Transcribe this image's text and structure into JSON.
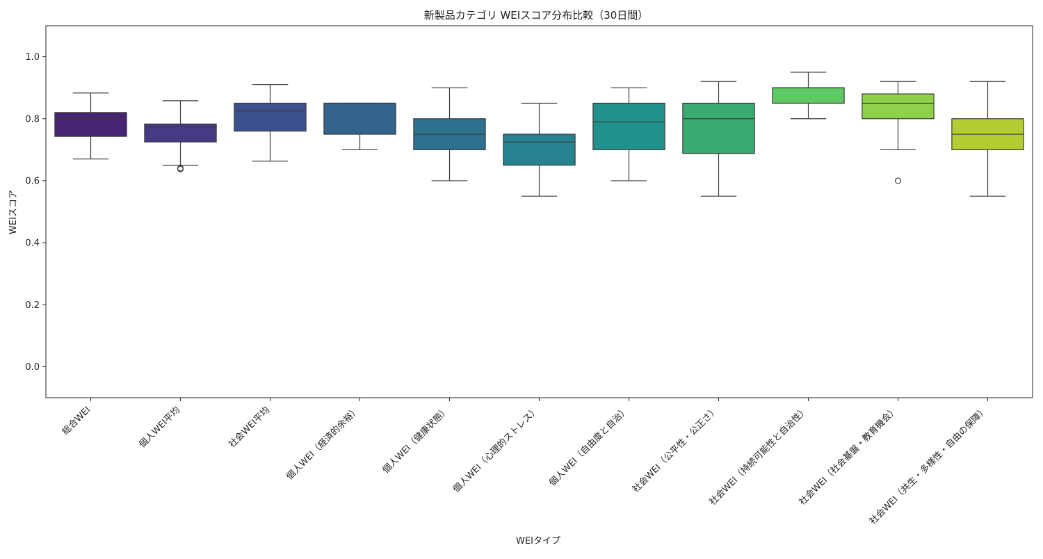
{
  "chart_data": {
    "type": "box",
    "title": "新製品カテゴリ WEIスコア分布比較（30日間）",
    "xlabel": "WEIタイプ",
    "ylabel": "WEIスコア",
    "ylim": [
      -0.1,
      1.1
    ],
    "yticks": [
      "0.0",
      "0.2",
      "0.4",
      "0.6",
      "0.8",
      "1.0"
    ],
    "ytick_values": [
      0.0,
      0.2,
      0.4,
      0.6,
      0.8,
      1.0
    ],
    "grid": false,
    "palette": "viridis",
    "categories": [
      "総合WEI",
      "個人WEI平均",
      "社会WEI平均",
      "個人WEI（経済的余裕）",
      "個人WEI（健康状態）",
      "個人WEI（心理的ストレス）",
      "個人WEI（自由度と自治）",
      "社会WEI（公平性・公正さ）",
      "社会WEI（持続可能性と自治性）",
      "社会WEI（社会基盤・教育機会）",
      "社会WEI（共生・多様性・自由の保障）"
    ],
    "boxes": [
      {
        "whislo": 0.67,
        "q1": 0.743,
        "median": 0.8,
        "q3": 0.82,
        "whishi": 0.883,
        "fliers": [],
        "color": "#482475"
      },
      {
        "whislo": 0.65,
        "q1": 0.725,
        "median": 0.775,
        "q3": 0.783,
        "whishi": 0.858,
        "fliers": [
          0.638,
          0.64
        ],
        "color": "#443b84"
      },
      {
        "whislo": 0.663,
        "q1": 0.76,
        "median": 0.825,
        "q3": 0.85,
        "whishi": 0.91,
        "fliers": [],
        "color": "#3c508b"
      },
      {
        "whislo": 0.7,
        "q1": 0.75,
        "median": 0.85,
        "q3": 0.85,
        "whishi": 0.85,
        "fliers": [],
        "color": "#33638d"
      },
      {
        "whislo": 0.6,
        "q1": 0.7,
        "median": 0.75,
        "q3": 0.8,
        "whishi": 0.9,
        "fliers": [],
        "color": "#2c728e"
      },
      {
        "whislo": 0.55,
        "q1": 0.65,
        "median": 0.725,
        "q3": 0.75,
        "whishi": 0.85,
        "fliers": [],
        "color": "#26828e"
      },
      {
        "whislo": 0.6,
        "q1": 0.7,
        "median": 0.79,
        "q3": 0.85,
        "whishi": 0.9,
        "fliers": [],
        "color": "#21918c"
      },
      {
        "whislo": 0.55,
        "q1": 0.688,
        "median": 0.8,
        "q3": 0.85,
        "whishi": 0.92,
        "fliers": [],
        "color": "#3aac72"
      },
      {
        "whislo": 0.8,
        "q1": 0.85,
        "median": 0.9,
        "q3": 0.9,
        "whishi": 0.95,
        "fliers": [],
        "color": "#5ec962"
      },
      {
        "whislo": 0.7,
        "q1": 0.8,
        "median": 0.85,
        "q3": 0.88,
        "whishi": 0.92,
        "fliers": [
          0.6
        ],
        "color": "#8fd148"
      },
      {
        "whislo": 0.55,
        "q1": 0.7,
        "median": 0.75,
        "q3": 0.8,
        "whishi": 0.92,
        "fliers": [],
        "color": "#b5cd32"
      }
    ]
  }
}
